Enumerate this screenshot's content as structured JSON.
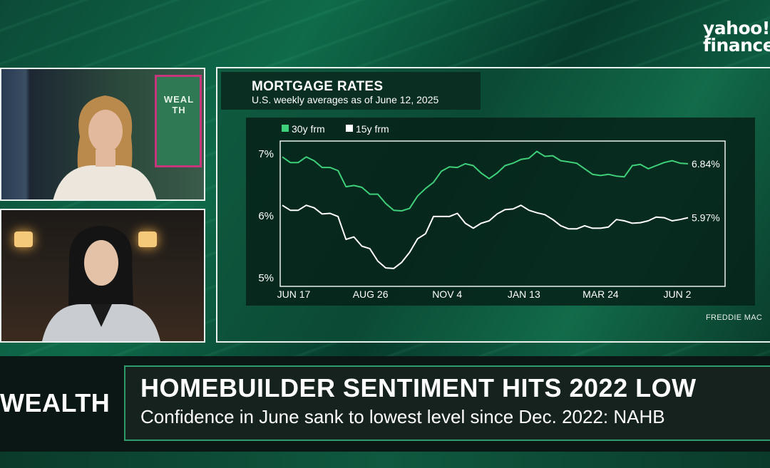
{
  "brand": {
    "logo_line1": "yahoo!",
    "logo_line2": "finance"
  },
  "video": {
    "poster_text": "WEALTH"
  },
  "chart_data": {
    "type": "line",
    "title": "MORTGAGE RATES",
    "subtitle": "U.S. weekly averages as of June 12, 2025",
    "source": "FREDDIE MAC",
    "x_tick_labels": [
      "JUN 17",
      "AUG 26",
      "NOV 4",
      "JAN 13",
      "MAR 24",
      "JUN 2"
    ],
    "y_tick_labels": [
      "7%",
      "6%",
      "5%"
    ],
    "ylim": [
      5,
      7
    ],
    "x_range_weeks": [
      0,
      51
    ],
    "grid": false,
    "legend_position": "top-left",
    "series": [
      {
        "name": "30y frm",
        "color": "#3ecf7a",
        "end_label": "6.84%",
        "weeks": [
          0,
          1,
          2,
          3,
          4,
          5,
          6,
          7,
          8,
          9,
          10,
          11,
          12,
          13,
          14,
          15,
          16,
          17,
          18,
          19,
          20,
          21,
          22,
          23,
          24,
          25,
          26,
          27,
          28,
          29,
          30,
          31,
          32,
          33,
          34,
          35,
          36,
          37,
          38,
          39,
          40,
          41,
          42,
          43,
          44,
          45,
          46,
          47,
          48,
          49,
          50,
          51
        ],
        "values": [
          6.95,
          6.86,
          6.86,
          6.95,
          6.89,
          6.78,
          6.78,
          6.73,
          6.47,
          6.49,
          6.46,
          6.35,
          6.35,
          6.2,
          6.09,
          6.08,
          6.12,
          6.32,
          6.44,
          6.54,
          6.72,
          6.79,
          6.78,
          6.84,
          6.81,
          6.69,
          6.6,
          6.69,
          6.81,
          6.85,
          6.91,
          6.93,
          7.04,
          6.96,
          6.97,
          6.89,
          6.87,
          6.85,
          6.76,
          6.67,
          6.65,
          6.67,
          6.64,
          6.63,
          6.81,
          6.83,
          6.76,
          6.81,
          6.86,
          6.89,
          6.85,
          6.84
        ]
      },
      {
        "name": "15y frm",
        "color": "#ffffff",
        "end_label": "5.97%",
        "weeks": [
          0,
          1,
          2,
          3,
          4,
          5,
          6,
          7,
          8,
          9,
          10,
          11,
          12,
          13,
          14,
          15,
          16,
          17,
          18,
          19,
          20,
          21,
          22,
          23,
          24,
          25,
          26,
          27,
          28,
          29,
          30,
          31,
          32,
          33,
          34,
          35,
          36,
          37,
          38,
          39,
          40,
          41,
          42,
          43,
          44,
          45,
          46,
          47,
          48,
          49,
          50,
          51
        ],
        "values": [
          6.17,
          6.09,
          6.09,
          6.17,
          6.13,
          6.03,
          6.04,
          5.99,
          5.62,
          5.66,
          5.51,
          5.47,
          5.27,
          5.16,
          5.15,
          5.25,
          5.41,
          5.63,
          5.71,
          5.99,
          5.99,
          5.99,
          6.04,
          5.88,
          5.8,
          5.88,
          5.92,
          6.03,
          6.1,
          6.11,
          6.17,
          6.09,
          6.05,
          6.02,
          5.94,
          5.84,
          5.79,
          5.79,
          5.84,
          5.8,
          5.8,
          5.82,
          5.94,
          5.92,
          5.88,
          5.89,
          5.92,
          5.98,
          5.97,
          5.92,
          5.94,
          5.97
        ]
      }
    ]
  },
  "lower_third": {
    "tag": "WEALTH",
    "headline": "HOMEBUILDER SENTIMENT HITS 2022 LOW",
    "subhead": "Confidence in June sank to lowest level since Dec. 2022: NAHB"
  }
}
